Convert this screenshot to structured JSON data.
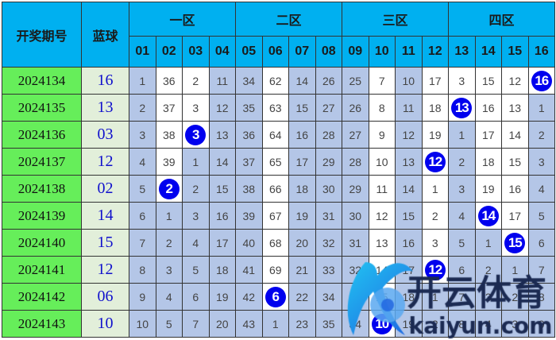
{
  "header": {
    "period_label": "开奖期号",
    "blue_label": "蓝球",
    "zones": [
      "一区",
      "二区",
      "三区",
      "四区"
    ],
    "numbers": [
      "01",
      "02",
      "03",
      "04",
      "05",
      "06",
      "07",
      "08",
      "09",
      "10",
      "11",
      "12",
      "13",
      "14",
      "15",
      "16"
    ]
  },
  "rows": [
    {
      "period": "2024134",
      "blue": "16",
      "cells": [
        "1",
        "36",
        "2",
        "11",
        "34",
        "62",
        "14",
        "26",
        "25",
        "7",
        "10",
        "17",
        "3",
        "15",
        "12",
        "16"
      ],
      "hit": 15
    },
    {
      "period": "2024135",
      "blue": "13",
      "cells": [
        "2",
        "37",
        "3",
        "12",
        "35",
        "63",
        "15",
        "27",
        "26",
        "8",
        "11",
        "18",
        "13",
        "16",
        "13",
        "1"
      ],
      "hit": 12
    },
    {
      "period": "2024136",
      "blue": "03",
      "cells": [
        "3",
        "38",
        "3",
        "13",
        "36",
        "64",
        "16",
        "28",
        "27",
        "9",
        "12",
        "19",
        "1",
        "17",
        "14",
        "2"
      ],
      "hit": 2
    },
    {
      "period": "2024137",
      "blue": "12",
      "cells": [
        "4",
        "39",
        "1",
        "14",
        "37",
        "65",
        "17",
        "29",
        "28",
        "10",
        "13",
        "12",
        "2",
        "18",
        "15",
        "3"
      ],
      "hit": 11
    },
    {
      "period": "2024138",
      "blue": "02",
      "cells": [
        "5",
        "2",
        "2",
        "15",
        "38",
        "66",
        "18",
        "30",
        "29",
        "11",
        "14",
        "1",
        "3",
        "19",
        "16",
        "4"
      ],
      "hit": 1
    },
    {
      "period": "2024139",
      "blue": "14",
      "cells": [
        "6",
        "1",
        "3",
        "16",
        "39",
        "67",
        "19",
        "31",
        "30",
        "12",
        "15",
        "2",
        "4",
        "14",
        "17",
        "5"
      ],
      "hit": 13
    },
    {
      "period": "2024140",
      "blue": "15",
      "cells": [
        "7",
        "2",
        "4",
        "17",
        "40",
        "68",
        "20",
        "32",
        "31",
        "13",
        "16",
        "3",
        "5",
        "1",
        "15",
        "6"
      ],
      "hit": 14
    },
    {
      "period": "2024141",
      "blue": "12",
      "cells": [
        "8",
        "3",
        "5",
        "18",
        "41",
        "69",
        "21",
        "33",
        "32",
        "14",
        "17",
        "12",
        "6",
        "2",
        "1",
        "7"
      ],
      "hit": 11
    },
    {
      "period": "2024142",
      "blue": "06",
      "cells": [
        "9",
        "4",
        "6",
        "19",
        "42",
        "6",
        "22",
        "34",
        "33",
        "15",
        "18",
        "1",
        "7",
        "3",
        "2",
        "8"
      ],
      "hit": 5
    },
    {
      "period": "2024143",
      "blue": "10",
      "cells": [
        "10",
        "5",
        "7",
        "20",
        "43",
        "1",
        "23",
        "35",
        "34",
        "10",
        "19",
        "2",
        "8",
        "4",
        "3",
        "9"
      ],
      "hit": 9
    }
  ],
  "watermark": {
    "cn": "开云体育",
    "en": "kaiyun.com"
  },
  "colors": {
    "header": "#00b0f0",
    "period": "#66ee5a",
    "blue_cell": "#e2efda",
    "shade": "#b4c6e7",
    "ball": "#0000ee"
  }
}
